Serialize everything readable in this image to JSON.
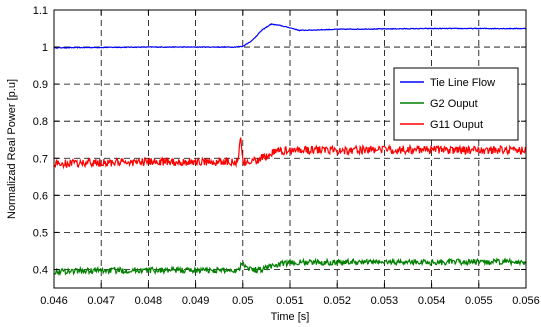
{
  "chart_data": {
    "type": "line",
    "title": "",
    "xlabel": "Time [s]",
    "ylabel": "Normalizad Real Power [p.u]",
    "xlim": [
      0.046,
      0.056
    ],
    "ylim": [
      0.35,
      1.1
    ],
    "x_ticks": [
      0.046,
      0.047,
      0.048,
      0.049,
      0.05,
      0.051,
      0.052,
      0.053,
      0.054,
      0.055,
      0.056
    ],
    "x_tick_labels": [
      "0.046",
      "0.047",
      "0.048",
      "0.049",
      "0.05",
      "0.051",
      "0.052",
      "0.053",
      "0.054",
      "0.055",
      "0.056"
    ],
    "y_ticks": [
      0.4,
      0.5,
      0.6,
      0.7,
      0.8,
      0.9,
      1.0,
      1.1
    ],
    "y_tick_labels": [
      "0.4",
      "0.5",
      "0.6",
      "0.7",
      "0.8",
      "0.9",
      "1",
      "1.1"
    ],
    "grid": true,
    "grid_style": "dashed",
    "legend_position": "right",
    "series": [
      {
        "name": "Tie Line Flow",
        "color": "#0000ff",
        "x": [
          0.046,
          0.047,
          0.048,
          0.049,
          0.0498,
          0.05,
          0.0502,
          0.0504,
          0.0506,
          0.0508,
          0.051,
          0.0512,
          0.0515,
          0.052,
          0.053,
          0.054,
          0.055,
          0.056
        ],
        "y": [
          0.998,
          0.999,
          1.0,
          1.0,
          1.0,
          1.002,
          1.018,
          1.045,
          1.062,
          1.058,
          1.052,
          1.045,
          1.046,
          1.048,
          1.049,
          1.05,
          1.05,
          1.05
        ],
        "noise": 0.001
      },
      {
        "name": "G2 Ouput",
        "color": "#008000",
        "x": [
          0.046,
          0.047,
          0.048,
          0.049,
          0.0499,
          0.05,
          0.0501,
          0.0503,
          0.0505,
          0.0507,
          0.051,
          0.052,
          0.053,
          0.054,
          0.055,
          0.056
        ],
        "y": [
          0.395,
          0.397,
          0.398,
          0.398,
          0.398,
          0.42,
          0.405,
          0.398,
          0.405,
          0.412,
          0.418,
          0.42,
          0.42,
          0.42,
          0.42,
          0.42
        ],
        "noise": 0.008
      },
      {
        "name": "G11 Ouput",
        "color": "#ff0000",
        "x": [
          0.046,
          0.047,
          0.048,
          0.049,
          0.0499,
          0.04995,
          0.05,
          0.0501,
          0.0503,
          0.0505,
          0.0507,
          0.051,
          0.052,
          0.053,
          0.054,
          0.055,
          0.056
        ],
        "y": [
          0.685,
          0.688,
          0.69,
          0.69,
          0.69,
          0.755,
          0.69,
          0.688,
          0.695,
          0.705,
          0.718,
          0.722,
          0.722,
          0.723,
          0.723,
          0.722,
          0.722
        ],
        "noise": 0.011
      }
    ]
  }
}
